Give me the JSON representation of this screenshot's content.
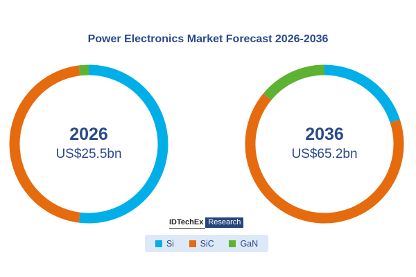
{
  "title": "Power Electronics Market Forecast 2026-2036",
  "colors": {
    "title": "#2b4a8a",
    "center_text": "#2b4a8a",
    "Si": "#00aee8",
    "SiC": "#e56b0e",
    "GaN": "#5eb232"
  },
  "brand": {
    "name": "IDTechEx",
    "tag": "Research"
  },
  "legend": [
    {
      "label": "Si",
      "color": "#00aee8"
    },
    {
      "label": "SiC",
      "color": "#e56b0e"
    },
    {
      "label": "GaN",
      "color": "#5eb232"
    }
  ],
  "chart_data": [
    {
      "type": "pie",
      "title": "2026",
      "total_label": "US$25.5bn",
      "categories": [
        "Si",
        "SiC",
        "GaN"
      ],
      "values": [
        52,
        46,
        2
      ],
      "unit": "percent share (estimated)"
    },
    {
      "type": "pie",
      "title": "2036",
      "total_label": "US$65.2bn",
      "categories": [
        "Si",
        "SiC",
        "GaN"
      ],
      "values": [
        20,
        66,
        14
      ],
      "unit": "percent share (estimated)"
    }
  ]
}
